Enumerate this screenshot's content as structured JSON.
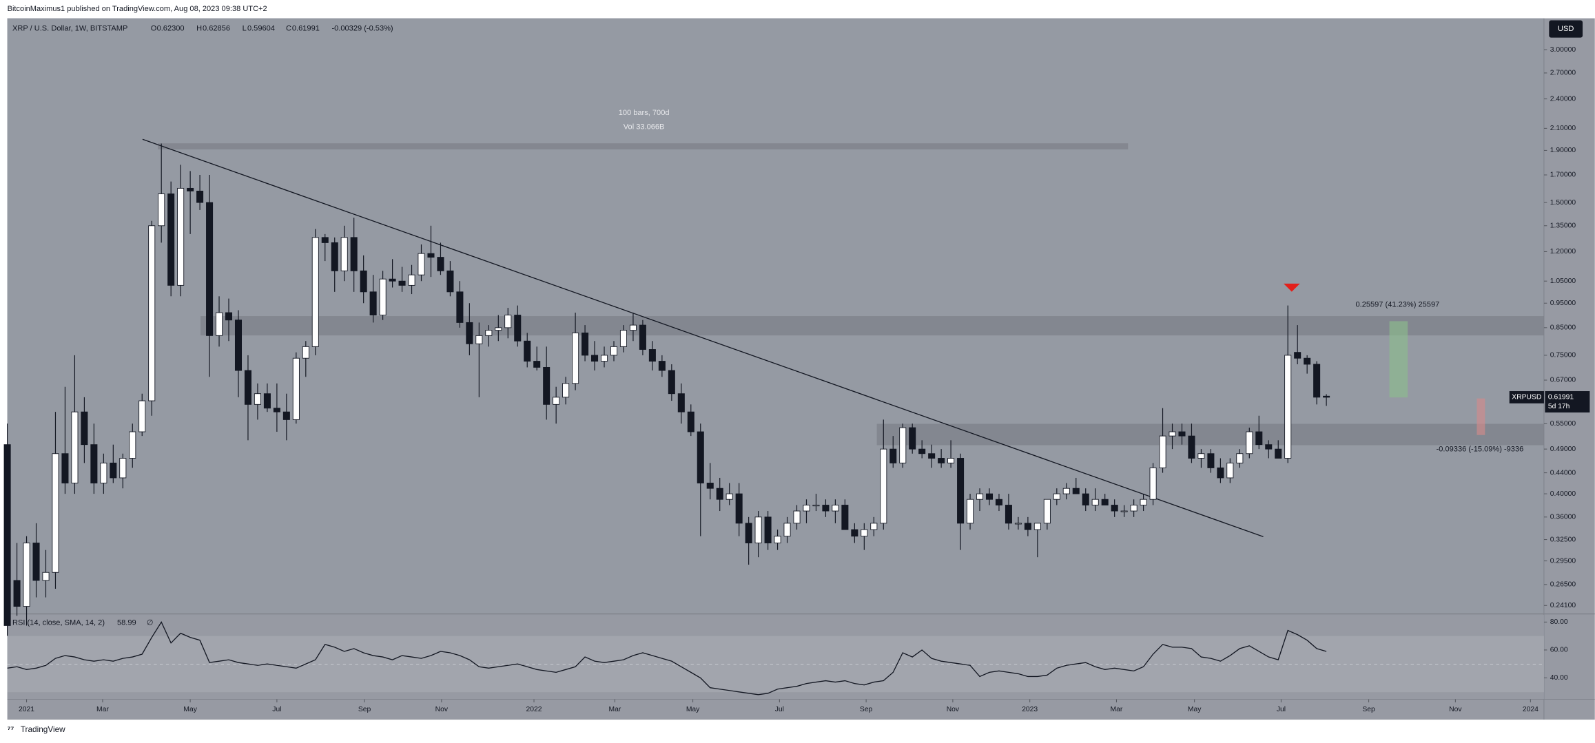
{
  "header": {
    "byline": "BitcoinMaximus1 published on TradingView.com, Aug 08, 2023 09:38 UTC+2"
  },
  "footer": {
    "brand": "TradingView"
  },
  "chart_data": [
    {
      "type": "candlestick",
      "title": "XRP / U.S. Dollar, 1W, BITSTAMP",
      "legend_fields": [
        {
          "key": "O",
          "value": "0.62300"
        },
        {
          "key": "H",
          "value": "0.62856"
        },
        {
          "key": "L",
          "value": "0.59604"
        },
        {
          "key": "C",
          "value": "0.61991"
        }
      ],
      "change": "-0.00329 (-0.53%)",
      "currency": "USD",
      "symbol": "XRPUSD",
      "countdown": "5d 17h",
      "annotations": [
        "100 bars, 700d",
        "Vol 33.066B",
        "0.25597 (41.23%) 25597",
        "-0.09336 (-15.09%) -9336"
      ],
      "up_color": "#ffffff",
      "down_color": "#131722",
      "log_scale": true,
      "ylim": [
        0.233,
        3.46
      ],
      "yticks": [
        {
          "value": 3,
          "label": "3.00000"
        },
        {
          "value": 2.7,
          "label": "2.70000"
        },
        {
          "value": 2.4,
          "label": "2.40000"
        },
        {
          "value": 2.1,
          "label": "2.10000"
        },
        {
          "value": 1.9,
          "label": "1.90000"
        },
        {
          "value": 1.7,
          "label": "1.70000"
        },
        {
          "value": 1.5,
          "label": "1.50000"
        },
        {
          "value": 1.35,
          "label": "1.35000"
        },
        {
          "value": 1.2,
          "label": "1.20000"
        },
        {
          "value": 1.05,
          "label": "1.05000"
        },
        {
          "value": 0.95,
          "label": "0.95000"
        },
        {
          "value": 0.85,
          "label": "0.85000"
        },
        {
          "value": 0.75,
          "label": "0.75000"
        },
        {
          "value": 0.67,
          "label": "0.67000"
        },
        {
          "value": 0.55,
          "label": "0.55000"
        },
        {
          "value": 0.49,
          "label": "0.49000"
        },
        {
          "value": 0.44,
          "label": "0.44000"
        },
        {
          "value": 0.4,
          "label": "0.40000"
        },
        {
          "value": 0.36,
          "label": "0.36000"
        },
        {
          "value": 0.325,
          "label": "0.32500"
        },
        {
          "value": 0.295,
          "label": "0.29500"
        },
        {
          "value": 0.265,
          "label": "0.26500"
        },
        {
          "value": 0.241,
          "label": "0.24100"
        }
      ],
      "xlim": [
        -2.0,
        157.6
      ],
      "xticks": [
        {
          "value": 0,
          "label": "2021"
        },
        {
          "value": 7.9,
          "label": "Mar"
        },
        {
          "value": 17.0,
          "label": "May"
        },
        {
          "value": 26.0,
          "label": "Jul"
        },
        {
          "value": 35.1,
          "label": "Sep"
        },
        {
          "value": 43.1,
          "label": "Nov"
        },
        {
          "value": 52.7,
          "label": "2022"
        },
        {
          "value": 61.1,
          "label": "Mar"
        },
        {
          "value": 69.2,
          "label": "May"
        },
        {
          "value": 78.2,
          "label": "Jul"
        },
        {
          "value": 87.2,
          "label": "Sep"
        },
        {
          "value": 96.2,
          "label": "Nov"
        },
        {
          "value": 104.2,
          "label": "2023"
        },
        {
          "value": 113.2,
          "label": "Mar"
        },
        {
          "value": 121.3,
          "label": "May"
        },
        {
          "value": 130.3,
          "label": "Jul"
        },
        {
          "value": 139.4,
          "label": "Sep"
        },
        {
          "value": 148.4,
          "label": "Nov"
        },
        {
          "value": 156.2,
          "label": "2024"
        }
      ],
      "x": [
        -2,
        -1,
        0,
        1,
        2,
        3,
        4,
        5,
        6,
        7,
        8,
        9,
        10,
        11,
        12,
        13,
        14,
        15,
        16,
        17,
        18,
        19,
        20,
        21,
        22,
        23,
        24,
        25,
        26,
        27,
        28,
        29,
        30,
        31,
        32,
        33,
        34,
        35,
        36,
        37,
        38,
        39,
        40,
        41,
        42,
        43,
        44,
        45,
        46,
        47,
        48,
        49,
        50,
        51,
        52,
        53,
        54,
        55,
        56,
        57,
        58,
        59,
        60,
        61,
        62,
        63,
        64,
        65,
        66,
        67,
        68,
        69,
        70,
        71,
        72,
        73,
        74,
        75,
        76,
        77,
        78,
        79,
        80,
        81,
        82,
        83,
        84,
        85,
        86,
        87,
        88,
        89,
        90,
        91,
        92,
        93,
        94,
        95,
        96,
        97,
        98,
        99,
        100,
        101,
        102,
        103,
        104,
        105,
        106,
        107,
        108,
        109,
        110,
        111,
        112,
        113,
        114,
        115,
        116,
        117,
        118,
        119,
        120,
        121,
        122,
        123,
        124,
        125,
        126,
        127,
        128,
        129,
        130,
        131,
        132,
        133,
        134,
        135
      ],
      "ohlc": [
        [
          0.5,
          0.55,
          0.21,
          0.22
        ],
        [
          0.27,
          0.32,
          0.23,
          0.24
        ],
        [
          0.24,
          0.33,
          0.22,
          0.32
        ],
        [
          0.32,
          0.35,
          0.25,
          0.27
        ],
        [
          0.27,
          0.31,
          0.25,
          0.28
        ],
        [
          0.28,
          0.58,
          0.26,
          0.48
        ],
        [
          0.48,
          0.65,
          0.4,
          0.42
        ],
        [
          0.42,
          0.75,
          0.4,
          0.58
        ],
        [
          0.58,
          0.62,
          0.46,
          0.5
        ],
        [
          0.5,
          0.55,
          0.4,
          0.42
        ],
        [
          0.42,
          0.48,
          0.4,
          0.46
        ],
        [
          0.46,
          0.5,
          0.42,
          0.43
        ],
        [
          0.43,
          0.48,
          0.41,
          0.47
        ],
        [
          0.47,
          0.55,
          0.45,
          0.53
        ],
        [
          0.53,
          0.63,
          0.52,
          0.61
        ],
        [
          0.61,
          1.38,
          0.57,
          1.35
        ],
        [
          1.35,
          1.96,
          1.25,
          1.56
        ],
        [
          1.56,
          1.65,
          0.98,
          1.03
        ],
        [
          1.03,
          1.78,
          0.98,
          1.6
        ],
        [
          1.6,
          1.73,
          1.3,
          1.58
        ],
        [
          1.58,
          1.7,
          1.45,
          1.5
        ],
        [
          1.5,
          1.7,
          0.68,
          0.82
        ],
        [
          0.82,
          0.98,
          0.78,
          0.91
        ],
        [
          0.91,
          0.97,
          0.8,
          0.88
        ],
        [
          0.88,
          0.92,
          0.62,
          0.7
        ],
        [
          0.7,
          0.75,
          0.51,
          0.6
        ],
        [
          0.6,
          0.66,
          0.56,
          0.63
        ],
        [
          0.63,
          0.66,
          0.58,
          0.59
        ],
        [
          0.59,
          0.66,
          0.53,
          0.58
        ],
        [
          0.58,
          0.63,
          0.51,
          0.56
        ],
        [
          0.56,
          0.76,
          0.55,
          0.74
        ],
        [
          0.74,
          0.8,
          0.68,
          0.78
        ],
        [
          0.78,
          1.33,
          0.75,
          1.28
        ],
        [
          1.28,
          1.3,
          1.15,
          1.25
        ],
        [
          1.25,
          1.28,
          1.0,
          1.1
        ],
        [
          1.1,
          1.35,
          1.05,
          1.28
        ],
        [
          1.28,
          1.4,
          1.0,
          1.1
        ],
        [
          1.1,
          1.18,
          0.95,
          1.0
        ],
        [
          1.0,
          1.08,
          0.87,
          0.9
        ],
        [
          0.9,
          1.1,
          0.88,
          1.06
        ],
        [
          1.06,
          1.16,
          1.02,
          1.05
        ],
        [
          1.05,
          1.12,
          1.0,
          1.03
        ],
        [
          1.03,
          1.13,
          0.99,
          1.08
        ],
        [
          1.08,
          1.24,
          1.05,
          1.19
        ],
        [
          1.19,
          1.35,
          1.07,
          1.17
        ],
        [
          1.17,
          1.25,
          1.08,
          1.1
        ],
        [
          1.1,
          1.15,
          0.98,
          1.0
        ],
        [
          1.0,
          1.05,
          0.85,
          0.87
        ],
        [
          0.87,
          0.95,
          0.75,
          0.79
        ],
        [
          0.79,
          0.87,
          0.62,
          0.82
        ],
        [
          0.82,
          0.86,
          0.78,
          0.84
        ],
        [
          0.84,
          0.9,
          0.8,
          0.85
        ],
        [
          0.85,
          0.93,
          0.81,
          0.9
        ],
        [
          0.9,
          0.94,
          0.78,
          0.8
        ],
        [
          0.8,
          0.83,
          0.71,
          0.73
        ],
        [
          0.73,
          0.78,
          0.7,
          0.71
        ],
        [
          0.71,
          0.78,
          0.56,
          0.6
        ],
        [
          0.6,
          0.65,
          0.55,
          0.62
        ],
        [
          0.62,
          0.68,
          0.6,
          0.66
        ],
        [
          0.66,
          0.91,
          0.64,
          0.83
        ],
        [
          0.83,
          0.86,
          0.73,
          0.75
        ],
        [
          0.75,
          0.8,
          0.7,
          0.73
        ],
        [
          0.73,
          0.78,
          0.71,
          0.75
        ],
        [
          0.75,
          0.8,
          0.73,
          0.78
        ],
        [
          0.78,
          0.86,
          0.76,
          0.84
        ],
        [
          0.84,
          0.91,
          0.8,
          0.86
        ],
        [
          0.86,
          0.88,
          0.75,
          0.77
        ],
        [
          0.77,
          0.8,
          0.7,
          0.73
        ],
        [
          0.73,
          0.75,
          0.68,
          0.7
        ],
        [
          0.7,
          0.72,
          0.61,
          0.63
        ],
        [
          0.63,
          0.66,
          0.55,
          0.58
        ],
        [
          0.58,
          0.6,
          0.52,
          0.53
        ],
        [
          0.53,
          0.55,
          0.33,
          0.42
        ],
        [
          0.42,
          0.46,
          0.39,
          0.41
        ],
        [
          0.41,
          0.43,
          0.37,
          0.39
        ],
        [
          0.39,
          0.42,
          0.38,
          0.4
        ],
        [
          0.4,
          0.42,
          0.33,
          0.35
        ],
        [
          0.35,
          0.36,
          0.29,
          0.32
        ],
        [
          0.32,
          0.37,
          0.3,
          0.36
        ],
        [
          0.36,
          0.37,
          0.31,
          0.32
        ],
        [
          0.32,
          0.34,
          0.31,
          0.33
        ],
        [
          0.33,
          0.36,
          0.32,
          0.35
        ],
        [
          0.35,
          0.38,
          0.34,
          0.37
        ],
        [
          0.37,
          0.39,
          0.35,
          0.38
        ],
        [
          0.38,
          0.4,
          0.37,
          0.38
        ],
        [
          0.38,
          0.39,
          0.36,
          0.37
        ],
        [
          0.37,
          0.39,
          0.35,
          0.38
        ],
        [
          0.38,
          0.39,
          0.34,
          0.34
        ],
        [
          0.34,
          0.35,
          0.32,
          0.33
        ],
        [
          0.33,
          0.35,
          0.31,
          0.34
        ],
        [
          0.34,
          0.36,
          0.33,
          0.35
        ],
        [
          0.35,
          0.56,
          0.34,
          0.49
        ],
        [
          0.49,
          0.52,
          0.45,
          0.46
        ],
        [
          0.46,
          0.55,
          0.45,
          0.54
        ],
        [
          0.54,
          0.55,
          0.48,
          0.49
        ],
        [
          0.49,
          0.51,
          0.47,
          0.48
        ],
        [
          0.48,
          0.5,
          0.45,
          0.47
        ],
        [
          0.47,
          0.49,
          0.45,
          0.46
        ],
        [
          0.46,
          0.51,
          0.45,
          0.47
        ],
        [
          0.47,
          0.48,
          0.31,
          0.35
        ],
        [
          0.35,
          0.4,
          0.34,
          0.39
        ],
        [
          0.39,
          0.41,
          0.37,
          0.4
        ],
        [
          0.4,
          0.41,
          0.38,
          0.39
        ],
        [
          0.39,
          0.4,
          0.37,
          0.38
        ],
        [
          0.38,
          0.4,
          0.34,
          0.35
        ],
        [
          0.35,
          0.36,
          0.34,
          0.35
        ],
        [
          0.35,
          0.36,
          0.33,
          0.34
        ],
        [
          0.34,
          0.35,
          0.3,
          0.35
        ],
        [
          0.35,
          0.39,
          0.34,
          0.39
        ],
        [
          0.39,
          0.41,
          0.38,
          0.4
        ],
        [
          0.4,
          0.42,
          0.39,
          0.41
        ],
        [
          0.41,
          0.43,
          0.4,
          0.4
        ],
        [
          0.4,
          0.41,
          0.37,
          0.38
        ],
        [
          0.38,
          0.41,
          0.37,
          0.39
        ],
        [
          0.39,
          0.4,
          0.38,
          0.38
        ],
        [
          0.38,
          0.39,
          0.36,
          0.37
        ],
        [
          0.37,
          0.38,
          0.36,
          0.37
        ],
        [
          0.37,
          0.39,
          0.36,
          0.38
        ],
        [
          0.38,
          0.4,
          0.37,
          0.39
        ],
        [
          0.39,
          0.46,
          0.38,
          0.45
        ],
        [
          0.45,
          0.59,
          0.44,
          0.52
        ],
        [
          0.52,
          0.55,
          0.49,
          0.53
        ],
        [
          0.53,
          0.55,
          0.5,
          0.52
        ],
        [
          0.52,
          0.55,
          0.46,
          0.47
        ],
        [
          0.47,
          0.49,
          0.45,
          0.48
        ],
        [
          0.48,
          0.49,
          0.44,
          0.45
        ],
        [
          0.45,
          0.47,
          0.42,
          0.43
        ],
        [
          0.43,
          0.47,
          0.42,
          0.46
        ],
        [
          0.46,
          0.49,
          0.45,
          0.48
        ],
        [
          0.48,
          0.54,
          0.47,
          0.53
        ],
        [
          0.53,
          0.57,
          0.49,
          0.5
        ],
        [
          0.5,
          0.51,
          0.47,
          0.49
        ],
        [
          0.49,
          0.51,
          0.47,
          0.47
        ],
        [
          0.47,
          0.94,
          0.46,
          0.75
        ],
        [
          0.76,
          0.86,
          0.72,
          0.74
        ],
        [
          0.74,
          0.75,
          0.69,
          0.72
        ],
        [
          0.72,
          0.73,
          0.6,
          0.62
        ],
        [
          0.623,
          0.62856,
          0.59604,
          0.61991
        ]
      ]
    },
    {
      "type": "line",
      "title": "RSI (14, close, SMA, 14, 2)",
      "ma_label": "∅",
      "color": "#131722",
      "ylim": [
        24.7,
        85.1
      ],
      "yticks": [
        {
          "value": 80,
          "label": "80.00"
        },
        {
          "value": 60,
          "label": "60.00"
        },
        {
          "value": 40,
          "label": "40.00"
        }
      ],
      "values": [
        47,
        48,
        46,
        47,
        49,
        54,
        56,
        55,
        53,
        52,
        53,
        52,
        54,
        55,
        57,
        69,
        80,
        65,
        72,
        69,
        67,
        51,
        52,
        53,
        51,
        50,
        49,
        50,
        49,
        48,
        47,
        50,
        53,
        64,
        62,
        59,
        61,
        58,
        56,
        55,
        53,
        56,
        55,
        54,
        56,
        59,
        58,
        56,
        53,
        48,
        47,
        48,
        49,
        50,
        48,
        46,
        45,
        44,
        46,
        48,
        55,
        52,
        51,
        52,
        53,
        56,
        58,
        56,
        54,
        52,
        48,
        44,
        40,
        33,
        32,
        31,
        30,
        29,
        28,
        29,
        32,
        33,
        34,
        36,
        37,
        38,
        37,
        38,
        36,
        35,
        37,
        38,
        44,
        58,
        55,
        60,
        54,
        52,
        51,
        50,
        49,
        41,
        44,
        45,
        44,
        43,
        41,
        41,
        42,
        47,
        49,
        50,
        51,
        48,
        46,
        47,
        46,
        45,
        48,
        57,
        64,
        62,
        62,
        61,
        55,
        54,
        52,
        56,
        61,
        63,
        59,
        55,
        53,
        74,
        71,
        67,
        61,
        58.99
      ]
    }
  ]
}
